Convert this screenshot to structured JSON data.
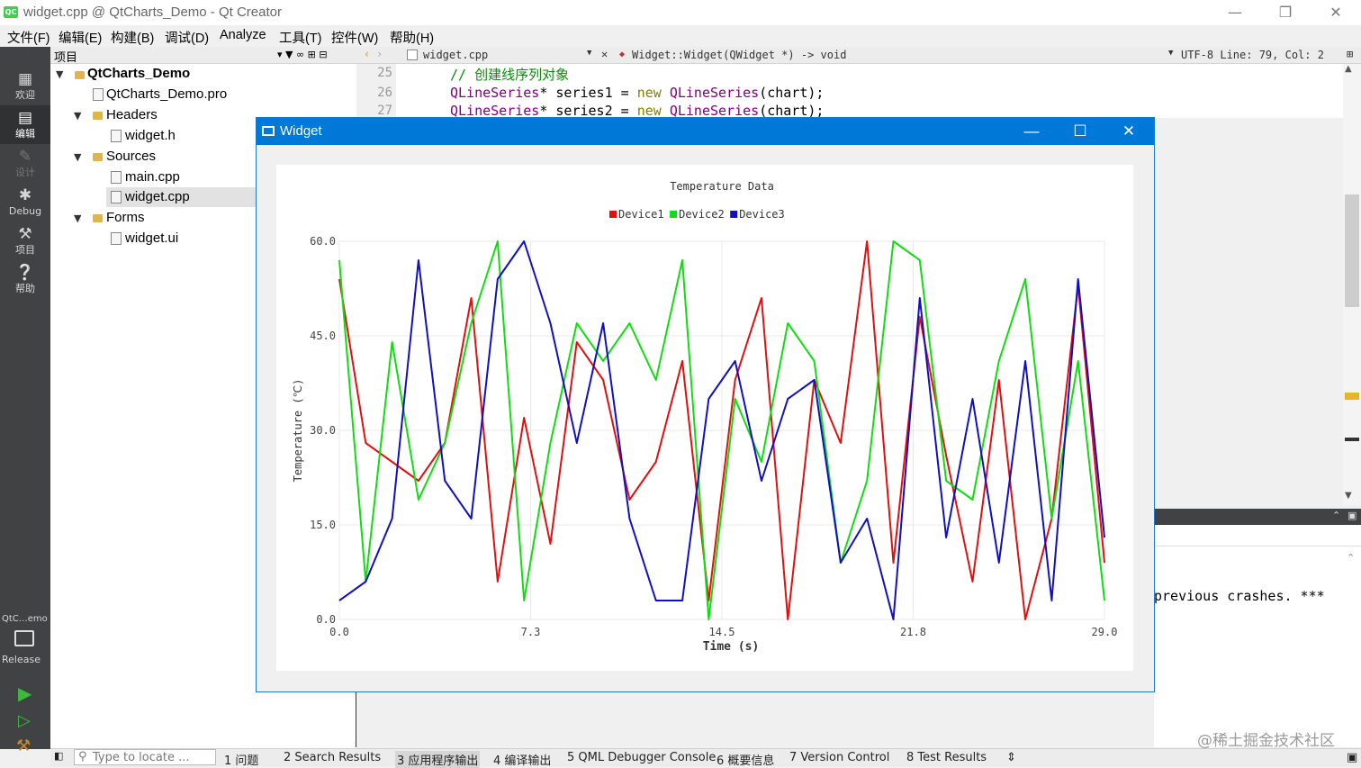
{
  "window": {
    "title": "widget.cpp @ QtCharts_Demo - Qt Creator",
    "app_icon": "QC"
  },
  "menu": [
    "文件(F)",
    "编辑(E)",
    "构建(B)",
    "调试(D)",
    "Analyze",
    "工具(T)",
    "控件(W)",
    "帮助(H)"
  ],
  "modes": [
    {
      "label": "欢迎",
      "icon": "grid-icon"
    },
    {
      "label": "编辑",
      "icon": "edit-icon"
    },
    {
      "label": "设计",
      "icon": "design-icon"
    },
    {
      "label": "Debug",
      "icon": "bug-icon"
    },
    {
      "label": "项目",
      "icon": "wrench-icon"
    },
    {
      "label": "帮助",
      "icon": "help-icon"
    }
  ],
  "kit": {
    "project": "QtC…emo",
    "config": "Release"
  },
  "project_panel": {
    "header": "项目",
    "tree": {
      "root": "QtCharts_Demo",
      "pro": "QtCharts_Demo.pro",
      "headers": "Headers",
      "widget_h": "widget.h",
      "sources": "Sources",
      "main_cpp": "main.cpp",
      "widget_cpp": "widget.cpp",
      "forms": "Forms",
      "widget_ui": "widget.ui"
    }
  },
  "editor": {
    "file": "widget.cpp",
    "function": "Widget::Widget(QWidget *) -> void",
    "encoding_pos": "UTF-8 Line: 79, Col: 2",
    "lines": [
      {
        "num": "25",
        "comment": "// 创建线序列对象"
      },
      {
        "num": "26",
        "type": "QLineSeries",
        "rest": "* series1 = ",
        "kw": "new",
        "ctor": "QLineSeries",
        "arg": "(chart);"
      },
      {
        "num": "27",
        "type": "QLineSeries",
        "rest": "* series2 = ",
        "kw": "new",
        "ctor": "QLineSeries",
        "arg": "(chart);"
      }
    ]
  },
  "output": {
    "text": "previous crashes. ***"
  },
  "statusbar": {
    "locate_placeholder": "Type to locate ...",
    "tabs": [
      "1 问题",
      "2 Search Results",
      "3 应用程序输出",
      "4 编译输出",
      "5 QML Debugger Console",
      "6 概要信息",
      "7 Version Control",
      "8 Test Results"
    ]
  },
  "widget_window": {
    "title": "Widget"
  },
  "chart_data": {
    "type": "line",
    "title": "Temperature Data",
    "xlabel": "Time (s)",
    "ylabel": "Temperature (℃)",
    "xlim": [
      0,
      29
    ],
    "ylim": [
      0,
      60
    ],
    "x_ticks": [
      "0.0",
      "7.3",
      "14.5",
      "21.8",
      "29.0"
    ],
    "y_ticks": [
      "0.0",
      "15.0",
      "30.0",
      "45.0",
      "60.0"
    ],
    "grid": true,
    "legend": "top-center",
    "x": [
      0,
      1,
      2,
      3,
      4,
      5,
      6,
      7,
      8,
      9,
      10,
      11,
      12,
      13,
      14,
      15,
      16,
      17,
      18,
      19,
      20,
      21,
      22,
      23,
      24,
      25,
      26,
      27,
      28,
      29
    ],
    "series": [
      {
        "name": "Device1",
        "color": "#e01010",
        "values": [
          54,
          28,
          25,
          22,
          28,
          51,
          6,
          32,
          12,
          44,
          38,
          19,
          25,
          41,
          3,
          38,
          51,
          0,
          38,
          28,
          60,
          9,
          48,
          26,
          6,
          38,
          0,
          16,
          53,
          9
        ]
      },
      {
        "name": "Device2",
        "color": "#10dd10",
        "values": [
          57,
          6,
          44,
          19,
          28,
          47,
          60,
          3,
          28,
          47,
          41,
          47,
          38,
          57,
          0,
          35,
          25,
          47,
          41,
          9,
          22,
          60,
          57,
          22,
          19,
          41,
          54,
          16,
          41,
          3
        ]
      },
      {
        "name": "Device3",
        "color": "#1010c0",
        "values": [
          3,
          6,
          16,
          57,
          22,
          16,
          54,
          60,
          47,
          28,
          47,
          16,
          3,
          3,
          35,
          41,
          22,
          35,
          38,
          9,
          16,
          0,
          51,
          13,
          35,
          9,
          41,
          3,
          54,
          13
        ]
      }
    ]
  },
  "watermark": "@稀土掘金技术社区"
}
